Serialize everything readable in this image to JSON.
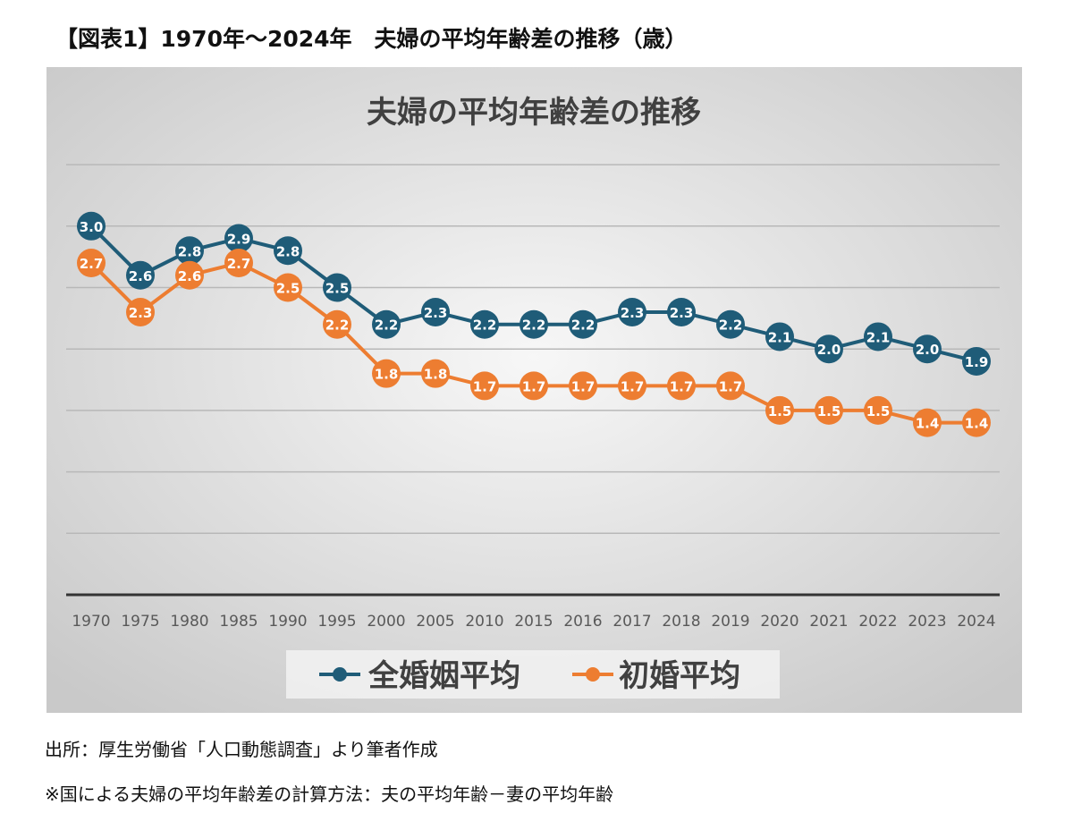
{
  "heading": "【図表1】1970年～2024年　夫婦の平均年齢差の推移（歳）",
  "notes": {
    "source": "出所：厚生労働省「人口動態調査」より筆者作成",
    "method": "※国による夫婦の平均年齢差の計算方法：夫の平均年齢－妻の平均年齢"
  },
  "chart_data": {
    "type": "line",
    "title": "夫婦の平均年齢差の推移",
    "xlabel": "",
    "ylabel": "",
    "ylim": [
      0,
      3.5
    ],
    "grid": true,
    "legend_position": "bottom",
    "categories": [
      "1970",
      "1975",
      "1980",
      "1985",
      "1990",
      "1995",
      "2000",
      "2005",
      "2010",
      "2015",
      "2016",
      "2017",
      "2018",
      "2019",
      "2020",
      "2021",
      "2022",
      "2023",
      "2024"
    ],
    "series": [
      {
        "name": "全婚姻平均",
        "color": "#1f5c78",
        "values": [
          3.0,
          2.6,
          2.8,
          2.9,
          2.8,
          2.5,
          2.2,
          2.3,
          2.2,
          2.2,
          2.2,
          2.3,
          2.3,
          2.2,
          2.1,
          2.0,
          2.1,
          2.0,
          1.9
        ]
      },
      {
        "name": "初婚平均",
        "color": "#ed7d31",
        "values": [
          2.7,
          2.3,
          2.6,
          2.7,
          2.5,
          2.2,
          1.8,
          1.8,
          1.7,
          1.7,
          1.7,
          1.7,
          1.7,
          1.7,
          1.5,
          1.5,
          1.5,
          1.4,
          1.4
        ]
      }
    ]
  }
}
